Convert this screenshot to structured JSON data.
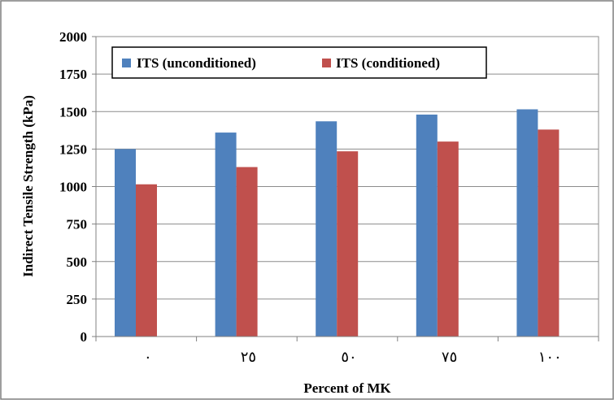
{
  "chart_data": {
    "type": "bar",
    "xlabel": "Percent of MK",
    "ylabel": "Indirect Tensile Strength (kPa)",
    "categories": [
      "٠",
      "٢٥",
      "٥٠",
      "٧٥",
      "١٠٠"
    ],
    "series": [
      {
        "name": "ITS (unconditioned)",
        "values": [
          1250,
          1360,
          1435,
          1480,
          1515
        ],
        "color": "#4f81bd"
      },
      {
        "name": "ITS (conditioned)",
        "values": [
          1015,
          1130,
          1235,
          1300,
          1380
        ],
        "color": "#c0504d"
      }
    ],
    "ylim": [
      0,
      2000
    ],
    "yticks": [
      0,
      250,
      500,
      750,
      1000,
      1250,
      1500,
      1750,
      2000
    ],
    "grid": true,
    "legend_position": "top"
  }
}
